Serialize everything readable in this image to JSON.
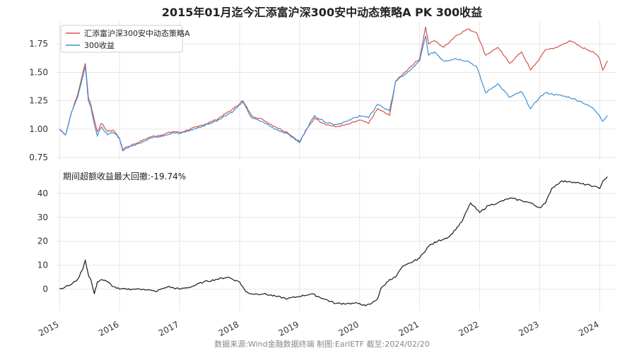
{
  "title": "2015年01月迄今汇添富沪深300安中动态策略A PK 300收益",
  "footer": "数据来源:Wind金融数据终端  制图:EarlETF 截至:2024/02/20",
  "colors": {
    "fund": "#d6524a",
    "index": "#3b8fd4",
    "excess": "#1a1a1a",
    "grid": "#e6e6e6"
  },
  "chart_data": [
    {
      "type": "line",
      "title": "2015年01月迄今汇添富沪深300安中动态策略A PK 300收益",
      "ylim": [
        0.72,
        1.95
      ],
      "yticks": [
        0.75,
        1.0,
        1.25,
        1.5,
        1.75
      ],
      "ytick_labels": [
        "0.75",
        "1.00",
        "1.25",
        "1.50",
        "1.75"
      ],
      "grid": true,
      "legend_position": "top-left",
      "x": [
        2015.0,
        2015.1,
        2015.2,
        2015.3,
        2015.38,
        2015.43,
        2015.48,
        2015.52,
        2015.58,
        2015.63,
        2015.7,
        2015.8,
        2015.9,
        2016.0,
        2016.05,
        2016.1,
        2016.2,
        2016.3,
        2016.5,
        2016.7,
        2016.9,
        2017.0,
        2017.3,
        2017.6,
        2017.9,
        2018.05,
        2018.2,
        2018.4,
        2018.6,
        2018.8,
        2019.0,
        2019.1,
        2019.25,
        2019.4,
        2019.6,
        2019.8,
        2020.0,
        2020.15,
        2020.3,
        2020.5,
        2020.6,
        2020.75,
        2020.85,
        2021.0,
        2021.1,
        2021.15,
        2021.25,
        2021.4,
        2021.6,
        2021.8,
        2021.95,
        2022.1,
        2022.3,
        2022.5,
        2022.7,
        2022.85,
        2023.0,
        2023.1,
        2023.3,
        2023.5,
        2023.7,
        2023.9,
        2024.0,
        2024.05,
        2024.13
      ],
      "series": [
        {
          "name": "汇添富沪深300安中动态策略A",
          "values": [
            1.0,
            0.95,
            1.15,
            1.3,
            1.48,
            1.58,
            1.28,
            1.22,
            1.08,
            0.98,
            1.05,
            0.98,
            0.99,
            0.92,
            0.82,
            0.84,
            0.86,
            0.88,
            0.93,
            0.95,
            0.98,
            0.97,
            1.02,
            1.08,
            1.18,
            1.25,
            1.12,
            1.08,
            1.02,
            0.97,
            0.89,
            0.98,
            1.1,
            1.05,
            1.02,
            1.04,
            1.08,
            1.05,
            1.18,
            1.12,
            1.42,
            1.5,
            1.55,
            1.62,
            1.9,
            1.75,
            1.78,
            1.72,
            1.82,
            1.88,
            1.85,
            1.65,
            1.72,
            1.58,
            1.68,
            1.52,
            1.62,
            1.7,
            1.72,
            1.78,
            1.72,
            1.68,
            1.62,
            1.52,
            1.6
          ]
        },
        {
          "name": "300收益",
          "values": [
            1.0,
            0.95,
            1.15,
            1.28,
            1.45,
            1.55,
            1.25,
            1.2,
            1.04,
            0.94,
            1.02,
            0.95,
            0.97,
            0.92,
            0.81,
            0.83,
            0.85,
            0.87,
            0.92,
            0.94,
            0.97,
            0.96,
            1.01,
            1.07,
            1.16,
            1.24,
            1.1,
            1.06,
            1.0,
            0.96,
            0.88,
            0.99,
            1.12,
            1.07,
            1.04,
            1.07,
            1.12,
            1.1,
            1.22,
            1.16,
            1.42,
            1.48,
            1.52,
            1.6,
            1.82,
            1.65,
            1.68,
            1.6,
            1.62,
            1.6,
            1.55,
            1.32,
            1.4,
            1.28,
            1.33,
            1.18,
            1.28,
            1.32,
            1.3,
            1.28,
            1.24,
            1.18,
            1.12,
            1.07,
            1.12
          ]
        }
      ]
    },
    {
      "type": "line",
      "annotation": "期间超额收益最大回撤:-19.74%",
      "ylim": [
        -9,
        50
      ],
      "yticks": [
        0,
        10,
        20,
        30,
        40
      ],
      "ytick_labels": [
        "0",
        "10",
        "20",
        "30",
        "40"
      ],
      "grid": true,
      "x": [
        2015.0,
        2015.1,
        2015.2,
        2015.3,
        2015.38,
        2015.43,
        2015.48,
        2015.52,
        2015.58,
        2015.63,
        2015.7,
        2015.8,
        2015.9,
        2016.0,
        2016.2,
        2016.4,
        2016.6,
        2016.8,
        2017.0,
        2017.2,
        2017.4,
        2017.6,
        2017.8,
        2018.0,
        2018.1,
        2018.2,
        2018.4,
        2018.6,
        2018.8,
        2019.0,
        2019.2,
        2019.4,
        2019.6,
        2019.8,
        2020.0,
        2020.1,
        2020.2,
        2020.3,
        2020.35,
        2020.5,
        2020.6,
        2020.7,
        2020.85,
        2021.0,
        2021.15,
        2021.3,
        2021.5,
        2021.7,
        2021.85,
        2022.0,
        2022.15,
        2022.3,
        2022.5,
        2022.7,
        2022.85,
        2023.0,
        2023.1,
        2023.2,
        2023.35,
        2023.5,
        2023.7,
        2023.9,
        2024.0,
        2024.05,
        2024.13
      ],
      "series": [
        {
          "name": "",
          "values": [
            0,
            1,
            2,
            4,
            8,
            12,
            6,
            4,
            -2,
            3,
            4,
            3,
            1,
            0,
            0,
            0,
            -1,
            1,
            0,
            1,
            3,
            4,
            5,
            3,
            -1,
            -2,
            -2,
            -3,
            -4,
            -3,
            -2,
            -4,
            -6,
            -6,
            -6,
            -7,
            -6,
            -4,
            0,
            4,
            5,
            9,
            11,
            13,
            18,
            20,
            22,
            28,
            36,
            32,
            35,
            36,
            38,
            37,
            36,
            34,
            36,
            42,
            45,
            45,
            44,
            43,
            42,
            45,
            47
          ]
        }
      ]
    }
  ],
  "x_axis": {
    "ticks": [
      2015,
      2016,
      2017,
      2018,
      2019,
      2020,
      2021,
      2022,
      2023,
      2024
    ],
    "tick_labels": [
      "2015",
      "2016",
      "2017",
      "2018",
      "2019",
      "2020",
      "2021",
      "2022",
      "2023",
      "2024"
    ]
  }
}
